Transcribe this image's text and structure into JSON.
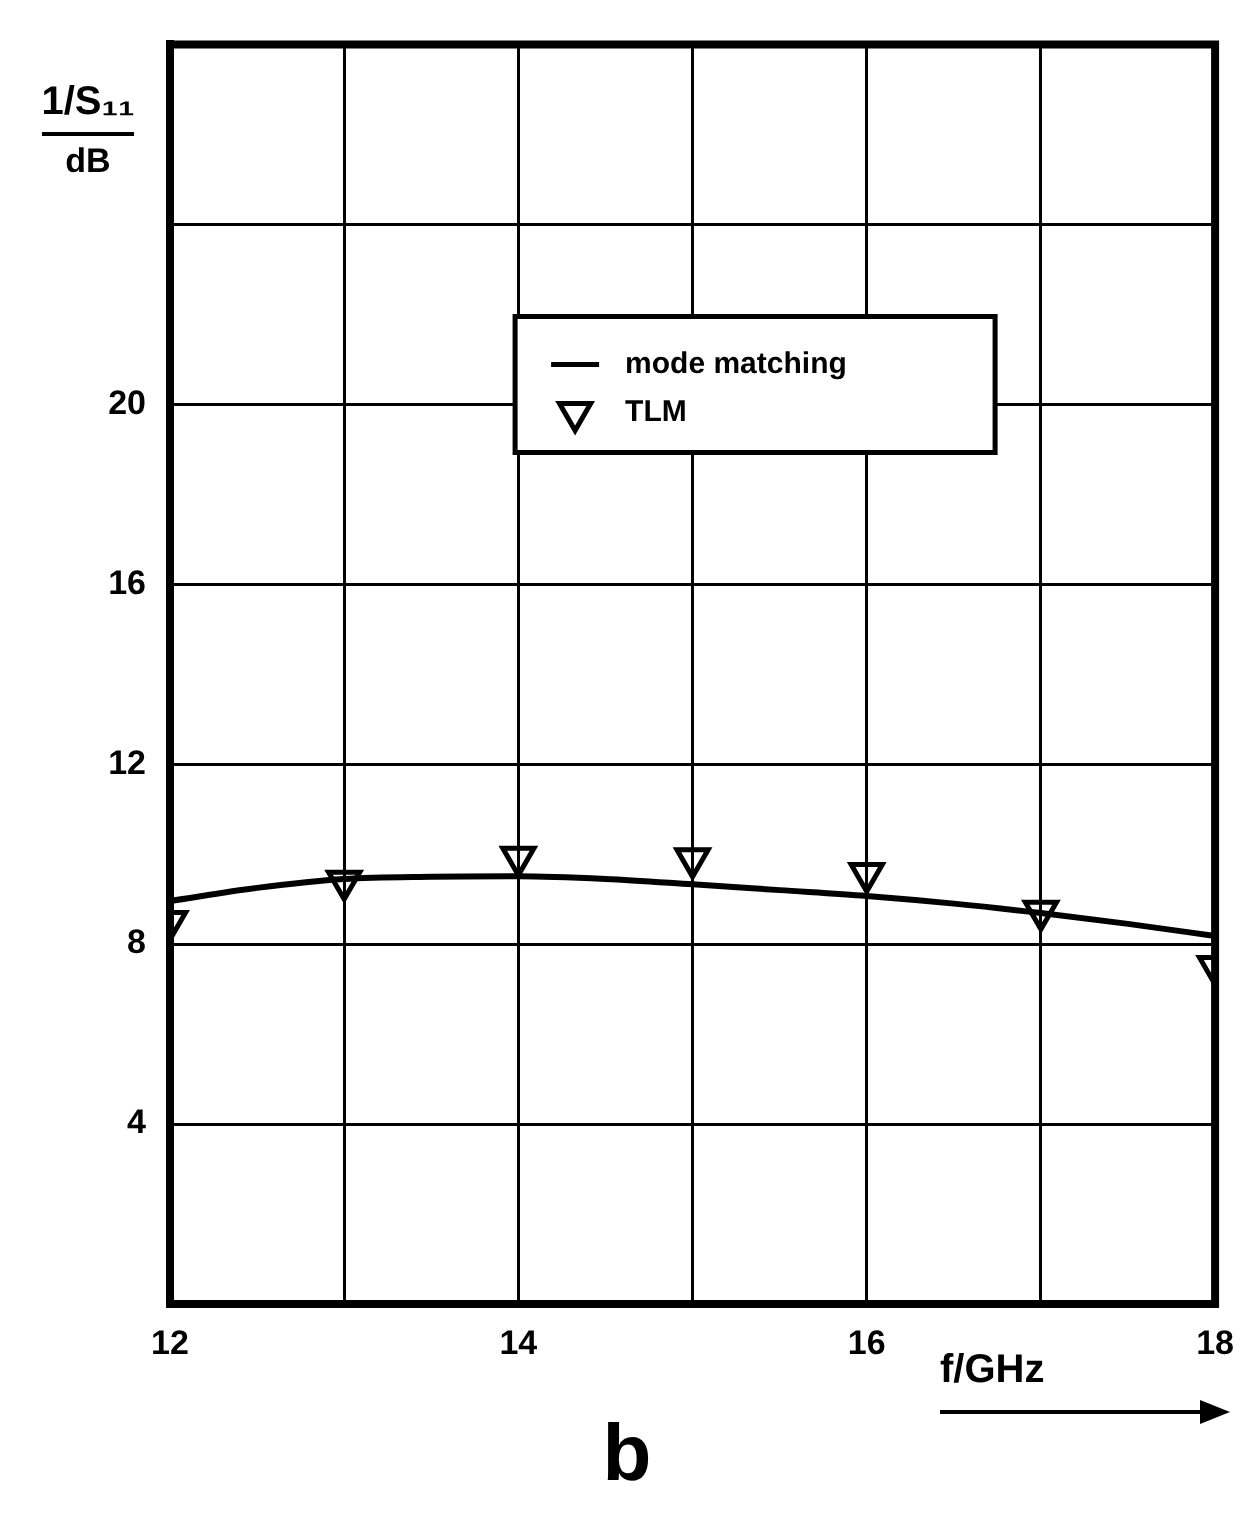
{
  "chart_data": {
    "type": "line",
    "title": "b",
    "xlabel": "f/GHz",
    "ylabel": "1/S₁₁ dB",
    "xlim": [
      12,
      18
    ],
    "xticks": [
      12,
      {
        "value": 13,
        "label": null
      },
      14,
      {
        "value": 15,
        "label": null
      },
      16,
      {
        "value": 17,
        "label": null
      },
      18
    ],
    "ylim": [
      0,
      28
    ],
    "yticks": [
      4,
      8,
      12,
      16,
      20,
      {
        "value": 24,
        "label": null
      }
    ],
    "grid": true,
    "legend": "top right",
    "series": [
      {
        "name": "mode matching",
        "type": "line",
        "color": "#000000",
        "marker": "none",
        "line_style": "solid",
        "x": [
          12,
          12.5,
          13,
          13.5,
          14,
          14.5,
          15,
          15.5,
          16,
          16.5,
          17,
          17.5,
          18
        ],
        "values": [
          8.96,
          9.25,
          9.45,
          9.5,
          9.51,
          9.45,
          9.33,
          9.2,
          9.07,
          8.9,
          8.69,
          8.45,
          8.18
        ]
      },
      {
        "name": "TLM",
        "type": "scatter",
        "color": "#000000",
        "marker": "triangle",
        "x": [
          12,
          13,
          14,
          15,
          16,
          17,
          18
        ],
        "values": [
          8.5,
          9.4,
          9.93,
          9.9,
          9.57,
          8.73,
          7.5
        ]
      }
    ]
  }
}
